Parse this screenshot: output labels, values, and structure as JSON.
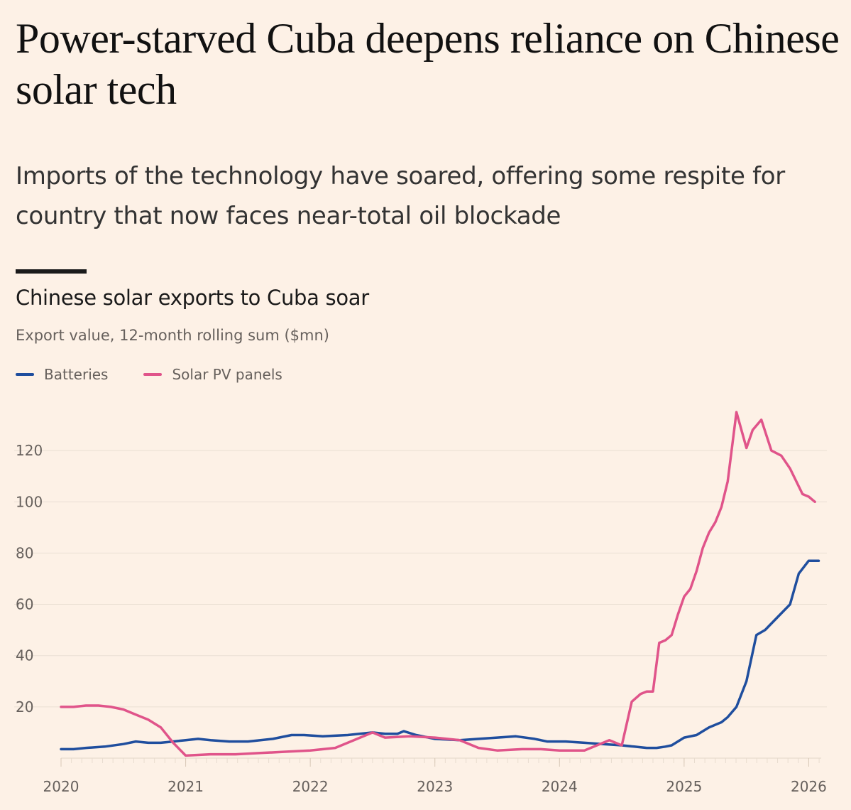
{
  "article": {
    "headline": "Power-starved Cuba deepens reliance on Chinese solar tech",
    "standfirst": "Imports of the technology have soared, offering some respite for country that now faces near-total oil blockade"
  },
  "colors": {
    "background": "#fdf1e6",
    "batteries": "#1f4e9e",
    "solar": "#e0548a",
    "gridline": "#eadfd3",
    "axis_text": "#66605c"
  },
  "chart_data": {
    "type": "line",
    "title": "Chinese solar exports to Cuba soar",
    "subtitle": "Export value, 12-month rolling sum ($mn)",
    "xlabel": "",
    "ylabel": "",
    "xlim": [
      2020.0,
      2026.1
    ],
    "ylim": [
      0,
      135
    ],
    "x_ticks": [
      {
        "value": 2020,
        "label": "2020"
      },
      {
        "value": 2021,
        "label": "2021"
      },
      {
        "value": 2022,
        "label": "2022"
      },
      {
        "value": 2023,
        "label": "2023"
      },
      {
        "value": 2024,
        "label": "2024"
      },
      {
        "value": 2025,
        "label": "2025"
      },
      {
        "value": 2026,
        "label": "2026"
      }
    ],
    "y_ticks": [
      {
        "value": 20,
        "label": "20"
      },
      {
        "value": 40,
        "label": "40"
      },
      {
        "value": 60,
        "label": "60"
      },
      {
        "value": 80,
        "label": "80"
      },
      {
        "value": 100,
        "label": "100"
      },
      {
        "value": 120,
        "label": "120"
      }
    ],
    "grid": true,
    "legend": "top-left",
    "series": [
      {
        "name": "Batteries",
        "color": "#1f4e9e",
        "x": [
          2020.0,
          2020.1,
          2020.2,
          2020.35,
          2020.5,
          2020.6,
          2020.7,
          2020.8,
          2020.9,
          2021.0,
          2021.1,
          2021.2,
          2021.35,
          2021.5,
          2021.7,
          2021.85,
          2021.95,
          2022.1,
          2022.3,
          2022.5,
          2022.6,
          2022.7,
          2022.75,
          2022.85,
          2023.0,
          2023.2,
          2023.35,
          2023.5,
          2023.65,
          2023.8,
          2023.9,
          2024.05,
          2024.2,
          2024.35,
          2024.5,
          2024.6,
          2024.7,
          2024.78,
          2024.85,
          2024.9,
          2025.0,
          2025.1,
          2025.2,
          2025.3,
          2025.35,
          2025.42,
          2025.5,
          2025.58,
          2025.65,
          2025.75,
          2025.85,
          2025.92,
          2026.0,
          2026.08
        ],
        "y": [
          3.5,
          3.5,
          4,
          4.5,
          5.5,
          6.5,
          6,
          6,
          6.5,
          7,
          7.5,
          7,
          6.5,
          6.5,
          7.5,
          9,
          9,
          8.5,
          9,
          10,
          9.5,
          9.5,
          10.5,
          9,
          7.5,
          7,
          7.5,
          8,
          8.5,
          7.5,
          6.5,
          6.5,
          6,
          5.5,
          5,
          4.5,
          4,
          4,
          4.5,
          5,
          8,
          9,
          12,
          14,
          16,
          20,
          30,
          48,
          50,
          55,
          60,
          72,
          77,
          77
        ]
      },
      {
        "name": "Solar PV panels",
        "color": "#e0548a",
        "x": [
          2020.0,
          2020.1,
          2020.2,
          2020.3,
          2020.4,
          2020.5,
          2020.6,
          2020.7,
          2020.8,
          2020.9,
          2021.0,
          2021.2,
          2021.4,
          2021.6,
          2021.8,
          2022.0,
          2022.2,
          2022.4,
          2022.5,
          2022.6,
          2022.8,
          2023.0,
          2023.2,
          2023.35,
          2023.5,
          2023.7,
          2023.85,
          2024.0,
          2024.2,
          2024.3,
          2024.4,
          2024.45,
          2024.5,
          2024.58,
          2024.65,
          2024.7,
          2024.75,
          2024.8,
          2024.85,
          2024.9,
          2024.95,
          2025.0,
          2025.05,
          2025.1,
          2025.15,
          2025.2,
          2025.25,
          2025.3,
          2025.35,
          2025.42,
          2025.5,
          2025.55,
          2025.62,
          2025.7,
          2025.78,
          2025.85,
          2025.9,
          2025.95,
          2026.0,
          2026.05
        ],
        "y": [
          20,
          20,
          20.5,
          20.5,
          20,
          19,
          17,
          15,
          12,
          6,
          1,
          1.5,
          1.5,
          2,
          2.5,
          3,
          4,
          8,
          10,
          8,
          8.5,
          8,
          7,
          4,
          3,
          3.5,
          3.5,
          3,
          3,
          5,
          7,
          6,
          5,
          22,
          25,
          26,
          26,
          45,
          46,
          48,
          56,
          63,
          66,
          73,
          82,
          88,
          92,
          98,
          108,
          135,
          121,
          128,
          132,
          120,
          118,
          113,
          108,
          103,
          102,
          100
        ]
      }
    ]
  }
}
